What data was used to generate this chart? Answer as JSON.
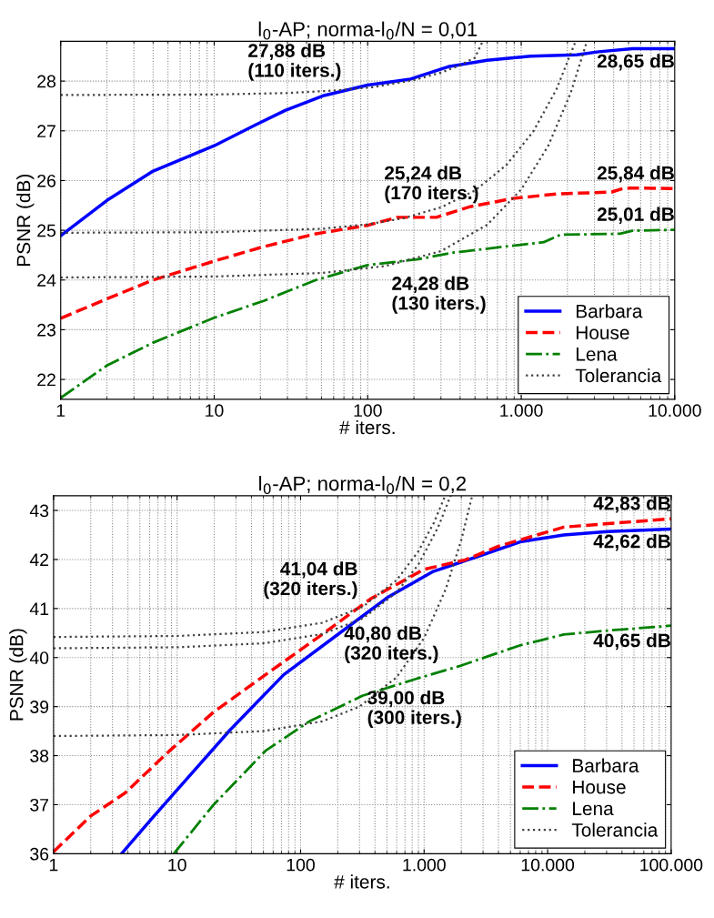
{
  "chart_data": [
    {
      "type": "line",
      "title": "l$_{0}$-AP; norma-l$_{0}$/N = 0,01",
      "xlabel": "# iters.",
      "ylabel": "PSNR (dB)",
      "log": "x",
      "grid": true,
      "legend": "bottom right",
      "xlim": [
        1,
        10000
      ],
      "xticks": [
        1,
        10,
        100,
        {
          "value": 1000,
          "label": "1.000"
        },
        {
          "value": 10000,
          "label": "10.000"
        }
      ],
      "ylim": [
        21.6,
        28.8
      ],
      "yticks": [
        22,
        23,
        24,
        25,
        26,
        27,
        28
      ],
      "series": [
        {
          "name": "Barbara",
          "color": "#0000ff",
          "line_style": "solid",
          "x": [
            1,
            2,
            4,
            10,
            18.6,
            29,
            52,
            100,
            190,
            335,
            600,
            1150,
            2300,
            3200,
            5300,
            10000
          ],
          "values": [
            24.89,
            25.6,
            26.19,
            26.7,
            27.12,
            27.41,
            27.71,
            27.92,
            28.04,
            28.29,
            28.42,
            28.5,
            28.53,
            28.59,
            28.65,
            28.65
          ]
        },
        {
          "name": "House",
          "color": "#ff0000",
          "line_style": "dashed",
          "x": [
            1,
            2,
            4,
            10,
            21,
            46,
            100,
            156,
            280,
            460,
            880,
            1700,
            3900,
            4700,
            10000
          ],
          "values": [
            23.23,
            23.62,
            24.0,
            24.38,
            24.67,
            24.93,
            25.1,
            25.26,
            25.26,
            25.47,
            25.64,
            25.73,
            25.77,
            25.85,
            25.84
          ]
        },
        {
          "name": "Lena",
          "color": "#008000",
          "line_style": "dashdot",
          "x": [
            1,
            2,
            4,
            10,
            21,
            46,
            100,
            215,
            360,
            880,
            1400,
            1800,
            4400,
            5300,
            10000
          ],
          "values": [
            21.63,
            22.28,
            22.74,
            23.24,
            23.58,
            24.0,
            24.3,
            24.42,
            24.55,
            24.69,
            24.76,
            24.91,
            24.93,
            24.99,
            25.01
          ]
        },
        {
          "name": "Tolerancia",
          "color": "#404040",
          "line_style": "dotted",
          "x": [
            1,
            10,
            30,
            60,
            110,
            200,
            300,
            400,
            500,
            560
          ],
          "values": [
            27.72,
            27.73,
            27.76,
            27.81,
            27.88,
            28.02,
            28.17,
            28.32,
            28.47,
            28.8
          ]
        },
        {
          "color": "#404040",
          "line_style": "dotted",
          "x": [
            1,
            10,
            50,
            100,
            170,
            300,
            500,
            800,
            1200,
            1700,
            2260
          ],
          "values": [
            24.95,
            24.96,
            25.03,
            25.12,
            25.24,
            25.46,
            25.8,
            26.31,
            26.99,
            27.84,
            28.8
          ]
        },
        {
          "color": "#404040",
          "line_style": "dotted",
          "x": [
            1,
            10,
            50,
            130,
            300,
            600,
            1000,
            1500,
            2100,
            2680
          ],
          "values": [
            24.05,
            24.07,
            24.14,
            24.28,
            24.58,
            25.11,
            25.82,
            26.7,
            27.76,
            28.8
          ]
        }
      ],
      "annotations": [
        {
          "text": "27,88 dB\n(110 iters.)",
          "x": 110,
          "y": 27.88
        },
        {
          "text": "25,24 dB\n(170 iters.)",
          "x": 170,
          "y": 25.24
        },
        {
          "text": "24,28 dB\n(130 iters.)",
          "x": 130,
          "y": 24.28
        },
        {
          "text": "28,65 dB",
          "x": 10000,
          "y": 28.65
        },
        {
          "text": "25,84 dB",
          "x": 10000,
          "y": 25.84
        },
        {
          "text": "25,01 dB",
          "x": 10000,
          "y": 25.01
        }
      ]
    },
    {
      "type": "line",
      "title": "l$_{0}$-AP; norma-l$_{0}$/N = 0,2",
      "xlabel": "# iters.",
      "ylabel": "PSNR (dB)",
      "log": "x",
      "grid": true,
      "legend": "bottom right",
      "xlim": [
        1,
        100000
      ],
      "xticks": [
        1,
        10,
        100,
        {
          "value": 1000,
          "label": "1.000"
        },
        {
          "value": 10000,
          "label": "10.000"
        },
        {
          "value": 100000,
          "label": "100.000"
        }
      ],
      "ylim": [
        36,
        43.3
      ],
      "yticks": [
        36,
        37,
        38,
        39,
        40,
        41,
        42,
        43
      ],
      "series": [
        {
          "name": "Barbara",
          "color": "#0000ff",
          "line_style": "solid",
          "x": [
            3.55,
            6.3,
            11,
            27,
            73,
            210,
            515,
            1170,
            2640,
            6000,
            13500,
            30700,
            100000
          ],
          "values": [
            36.0,
            36.73,
            37.42,
            38.53,
            39.65,
            40.51,
            41.24,
            41.75,
            42.05,
            42.36,
            42.5,
            42.57,
            42.62
          ]
        },
        {
          "name": "House",
          "color": "#ff0000",
          "line_style": "dashed",
          "x": [
            1,
            2,
            3.8,
            8.7,
            19.6,
            52,
            140,
            370,
            1000,
            2150,
            4000,
            13500,
            30700,
            100000
          ],
          "values": [
            36.04,
            36.77,
            37.24,
            38.1,
            38.88,
            39.65,
            40.42,
            41.2,
            41.8,
            41.99,
            42.27,
            42.66,
            42.73,
            42.83
          ]
        },
        {
          "name": "Lena",
          "color": "#008000",
          "line_style": "dashdot",
          "x": [
            9.4,
            19.6,
            52,
            118,
            316,
            845,
            1900,
            6000,
            13500,
            30700,
            100000
          ],
          "values": [
            36.0,
            36.99,
            38.1,
            38.7,
            39.22,
            39.56,
            39.82,
            40.25,
            40.47,
            40.55,
            40.65
          ]
        },
        {
          "name": "Tolerancia",
          "color": "#404040",
          "line_style": "dotted",
          "x": [
            1,
            10,
            50,
            150,
            320,
            600,
            900,
            1200,
            1480
          ],
          "values": [
            40.42,
            40.44,
            40.52,
            40.71,
            41.04,
            41.58,
            42.17,
            42.75,
            43.3
          ]
        },
        {
          "color": "#404040",
          "line_style": "dotted",
          "x": [
            1,
            10,
            50,
            150,
            320,
            600,
            900,
            1300,
            1640
          ],
          "values": [
            40.19,
            40.21,
            40.29,
            40.48,
            40.8,
            41.33,
            41.9,
            42.66,
            43.3
          ]
        },
        {
          "color": "#404040",
          "line_style": "dotted",
          "x": [
            1,
            10,
            50,
            150,
            300,
            600,
            1000,
            1500,
            2000,
            2450
          ],
          "values": [
            38.4,
            38.42,
            38.5,
            38.7,
            39.0,
            39.6,
            40.4,
            41.4,
            42.4,
            43.3
          ]
        }
      ],
      "annotations": [
        {
          "text": "41,04 dB\n(320 iters.)",
          "x": 320,
          "y": 41.04
        },
        {
          "text": "40,80 dB\n(320 iters.)",
          "x": 320,
          "y": 40.8
        },
        {
          "text": "39,00 dB\n(300 iters.)",
          "x": 300,
          "y": 39.0
        },
        {
          "text": "42,83 dB",
          "x": 100000,
          "y": 42.83
        },
        {
          "text": "42,62 dB",
          "x": 100000,
          "y": 42.62
        },
        {
          "text": "40,65 dB",
          "x": 100000,
          "y": 40.65
        }
      ]
    }
  ]
}
